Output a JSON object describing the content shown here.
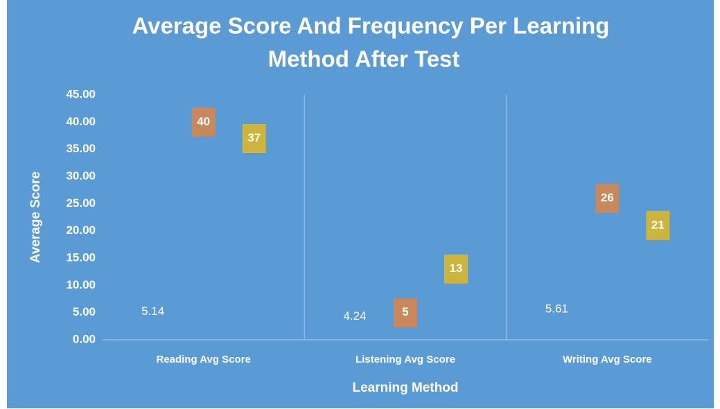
{
  "chart_data": {
    "type": "point",
    "title": "Average Score And Frequency Per Learning Method  After Test",
    "title_lines": [
      "Average Score And Frequency Per Learning",
      "Method  After Test"
    ],
    "x_label": "Learning Method",
    "y_label": "Average Score",
    "categories": [
      "Reading Avg Score",
      "Listening Avg Score",
      "Writing Avg Score"
    ],
    "series": [
      {
        "color": null,
        "values": [
          5.14,
          4.24,
          5.61
        ]
      },
      {
        "color": "#c9875c",
        "values": [
          40,
          5,
          26
        ]
      },
      {
        "color": "#cdb43c",
        "values": [
          37,
          13,
          21
        ]
      }
    ],
    "ylim": [
      0,
      45
    ],
    "yticks": [
      {
        "value": 0,
        "label": "0.00"
      },
      {
        "value": 5,
        "label": "5.00"
      },
      {
        "value": 10,
        "label": "10.00"
      },
      {
        "value": 15,
        "label": "15.00"
      },
      {
        "value": 20,
        "label": "20.00"
      },
      {
        "value": 25,
        "label": "25.00"
      },
      {
        "value": 30,
        "label": "30.00"
      },
      {
        "value": 35,
        "label": "35.00"
      },
      {
        "value": 40,
        "label": "40.00"
      },
      {
        "value": 45,
        "label": "45.00"
      }
    ],
    "grid": false
  }
}
